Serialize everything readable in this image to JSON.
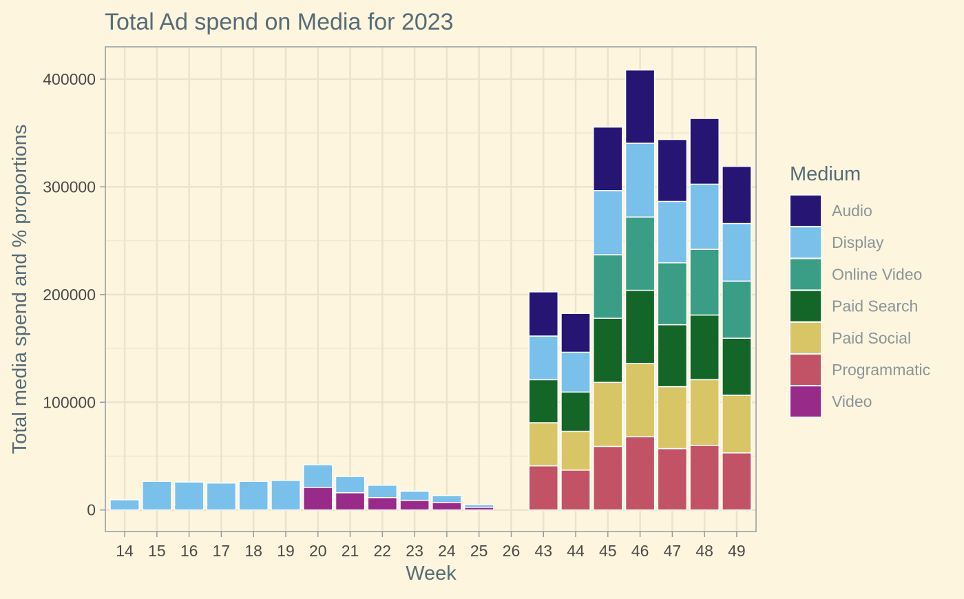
{
  "chart_data": {
    "type": "bar",
    "stacked": true,
    "title": "Total Ad spend on Media for 2023",
    "xlabel": "Week",
    "ylabel": "Total media spend and % proportions",
    "ylim": [
      -20000,
      430000
    ],
    "yticks": [
      0,
      100000,
      200000,
      300000,
      400000
    ],
    "ytick_labels": [
      "0",
      "100000",
      "200000",
      "300000",
      "400000"
    ],
    "grid": true,
    "legend": {
      "title": "Medium",
      "position": "right"
    },
    "categories": [
      "14",
      "15",
      "16",
      "17",
      "18",
      "19",
      "20",
      "21",
      "22",
      "23",
      "24",
      "25",
      "26",
      "43",
      "44",
      "45",
      "46",
      "47",
      "48",
      "49"
    ],
    "series": [
      {
        "name": "Video",
        "color": "#982a8a",
        "values": [
          0,
          0,
          0,
          0,
          0,
          0,
          21000,
          16000,
          11500,
          9000,
          7000,
          2500,
          0,
          0,
          0,
          0,
          0,
          0,
          0,
          0
        ]
      },
      {
        "name": "Programmatic",
        "color": "#c25366",
        "values": [
          0,
          0,
          0,
          0,
          0,
          0,
          0,
          0,
          0,
          0,
          0,
          0,
          0,
          41000,
          37000,
          59000,
          68000,
          57000,
          60000,
          53000
        ]
      },
      {
        "name": "Paid Social",
        "color": "#d8c566",
        "values": [
          0,
          0,
          0,
          0,
          0,
          0,
          0,
          0,
          0,
          0,
          0,
          0,
          0,
          40000,
          36000,
          59500,
          68000,
          57500,
          61000,
          53500
        ]
      },
      {
        "name": "Paid Search",
        "color": "#136627",
        "values": [
          0,
          0,
          0,
          0,
          0,
          0,
          0,
          0,
          0,
          0,
          0,
          0,
          0,
          40000,
          36500,
          59500,
          68000,
          57500,
          60000,
          53000
        ]
      },
      {
        "name": "Online Video",
        "color": "#3a9d85",
        "values": [
          0,
          0,
          0,
          0,
          0,
          0,
          0,
          0,
          0,
          0,
          0,
          0,
          0,
          0,
          0,
          59000,
          68000,
          57500,
          61000,
          53000
        ]
      },
      {
        "name": "Display",
        "color": "#79c0eb",
        "values": [
          9500,
          26500,
          26000,
          25000,
          26500,
          27500,
          21000,
          15000,
          11500,
          8500,
          6500,
          2500,
          0,
          40500,
          37000,
          59500,
          68500,
          57000,
          60500,
          53500
        ]
      },
      {
        "name": "Audio",
        "color": "#261573",
        "values": [
          0,
          0,
          0,
          0,
          0,
          0,
          0,
          0,
          0,
          0,
          0,
          0,
          0,
          41000,
          36000,
          59000,
          68000,
          57500,
          61000,
          53000
        ]
      }
    ]
  }
}
